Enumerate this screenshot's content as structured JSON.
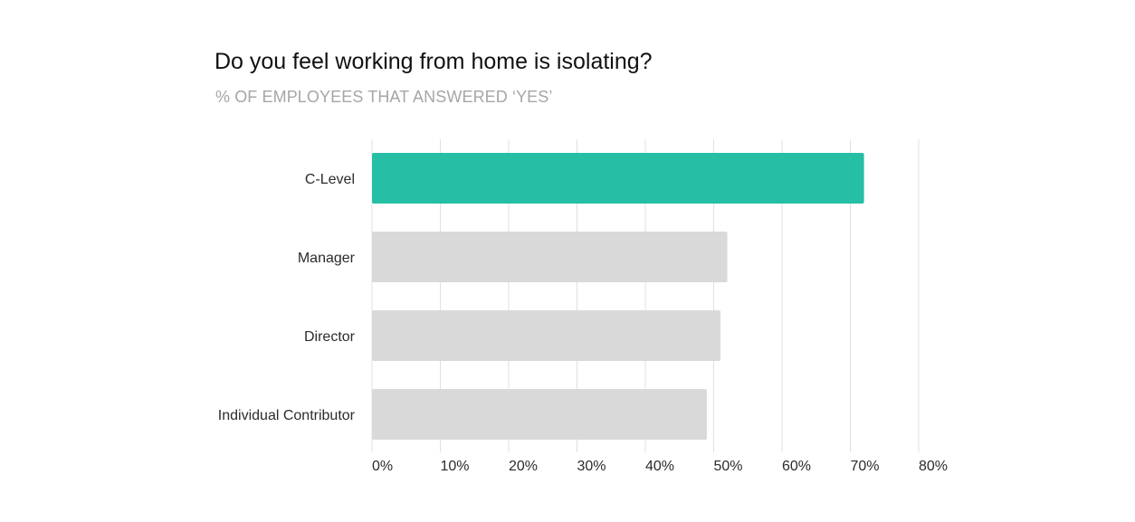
{
  "chart_data": {
    "type": "bar",
    "orientation": "horizontal",
    "title": "Do you feel working from home is isolating?",
    "subtitle": "% OF EMPLOYEES THAT ANSWERED ‘YES’",
    "categories": [
      "C-Level",
      "Manager",
      "Director",
      "Individual Contributor"
    ],
    "values": [
      72,
      52,
      51,
      49
    ],
    "highlight_index": 0,
    "xlim": [
      0,
      80
    ],
    "x_ticks": [
      0,
      10,
      20,
      30,
      40,
      50,
      60,
      70,
      80
    ],
    "x_tick_labels": [
      "0%",
      "10%",
      "20%",
      "30%",
      "40%",
      "50%",
      "60%",
      "70%",
      "80%"
    ],
    "xlabel": "",
    "ylabel": "",
    "grid": true,
    "legend": "none",
    "colors": {
      "highlight": "#26bea5",
      "default": "#d9d9d9",
      "grid": "#e0e0e0"
    }
  }
}
